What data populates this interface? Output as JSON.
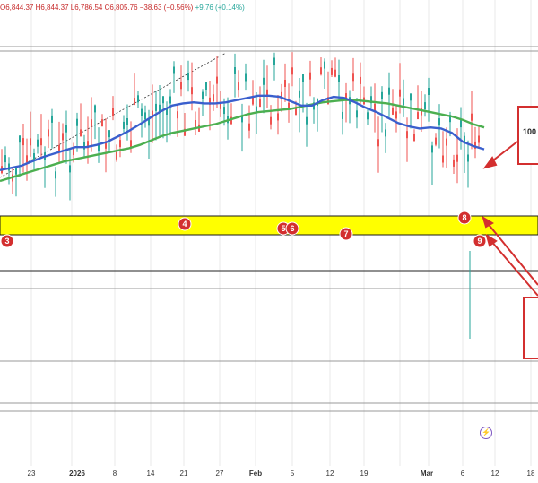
{
  "header": {
    "o": "O6,844.37",
    "h": "H6,844.37",
    "l": "L6,786.54",
    "c": "C6,805.76",
    "chg": "−38.63 (−0.56%)",
    "chg2": "+9.76 (+0.14%)"
  },
  "callouts": [
    {
      "text": "100"
    },
    {
      "text": ""
    }
  ],
  "chart_data": {
    "type": "candlestick",
    "title": "",
    "x_ticks": [
      "23",
      "2026",
      "8",
      "14",
      "21",
      "27",
      "Feb",
      "5",
      "12",
      "19",
      "Mar",
      "6",
      "12",
      "18"
    ],
    "support_zone": {
      "color": "#ffff00",
      "border": "#1a1a1a"
    },
    "ma100_color": "#3a5fcd",
    "ma200_color": "#4caf50",
    "markers": [
      "3",
      "4",
      "5",
      "6",
      "7",
      "8",
      "9"
    ],
    "marker_color": "#d32f2f",
    "ma100": [
      1.0,
      1.2,
      1.4,
      1.8,
      2.2,
      2.5,
      2.8,
      3.1,
      3.1,
      3.3,
      3.6,
      4.1,
      4.6,
      5.2,
      5.8,
      6.4,
      6.9,
      7.1,
      7.2,
      7.1,
      7.1,
      7.2,
      7.4,
      7.6,
      7.8,
      7.8,
      7.7,
      7.3,
      6.9,
      6.9,
      7.4,
      7.7,
      7.6,
      7.2,
      6.7,
      6.3,
      5.8,
      5.3,
      5.0,
      4.8,
      4.9,
      4.8,
      4.4,
      3.6,
      3.2,
      2.9
    ],
    "ma200": [
      0.0,
      0.3,
      0.6,
      0.9,
      1.2,
      1.5,
      1.8,
      2.0,
      2.2,
      2.4,
      2.6,
      2.8,
      3.0,
      3.3,
      3.7,
      4.1,
      4.4,
      4.6,
      4.8,
      5.0,
      5.2,
      5.5,
      5.8,
      6.1,
      6.3,
      6.4,
      6.5,
      6.6,
      6.8,
      7.0,
      7.2,
      7.3,
      7.4,
      7.4,
      7.3,
      7.2,
      7.1,
      6.9,
      6.7,
      6.5,
      6.3,
      6.1,
      5.9,
      5.6,
      5.2,
      4.9
    ]
  }
}
